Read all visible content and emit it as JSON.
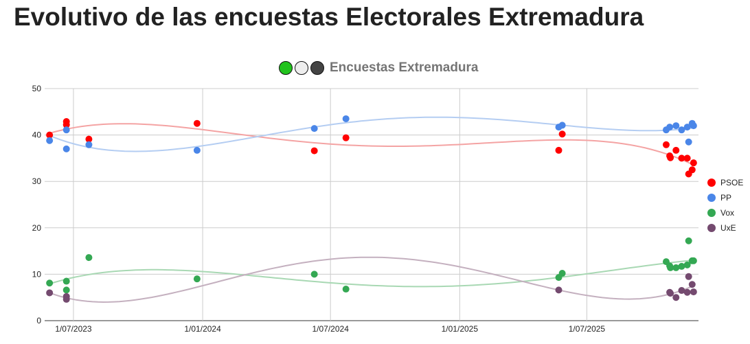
{
  "page_title": "Evolutivo de las encuestas Electorales Extremadura",
  "header_icons": [
    {
      "name": "green-circle-icon",
      "color": "#22c31e"
    },
    {
      "name": "white-circle-icon",
      "color": "#eeeeee"
    },
    {
      "name": "dark-circle-icon",
      "color": "#444444"
    }
  ],
  "chart_data": {
    "type": "scatter",
    "title": "Encuestas Extremadura",
    "xlabel": "",
    "ylabel": "",
    "xlim": [
      "2023-05-21",
      "2025-12-07"
    ],
    "ylim": [
      0,
      50
    ],
    "y_ticks": [
      "0",
      "10",
      "20",
      "30",
      "40",
      "50"
    ],
    "x_ticks": [
      {
        "date": "2023-07-01",
        "label": "1/07/2023"
      },
      {
        "date": "2024-01-01",
        "label": "1/01/2024"
      },
      {
        "date": "2024-07-01",
        "label": "1/07/2024"
      },
      {
        "date": "2025-01-01",
        "label": "1/01/2025"
      },
      {
        "date": "2025-07-01",
        "label": "1/07/2025"
      }
    ],
    "grid": true,
    "legend_position": "right",
    "trendline": "polynomial",
    "series": [
      {
        "name": "PSOE",
        "color": "#ff0000",
        "trend_color": "#f4a3a3"
      },
      {
        "name": "PP",
        "color": "#4a86e8",
        "trend_color": "#b4cdf2"
      },
      {
        "name": "Vox",
        "color": "#34a853",
        "trend_color": "#a8d8b3"
      },
      {
        "name": "UxE",
        "color": "#744a6f",
        "trend_color": "#c4b0bf"
      }
    ],
    "polls": [
      {
        "date": "2023-05-28",
        "PSOE": 40.0,
        "PP": 38.8,
        "Vox": 8.1,
        "UxE": 6.0
      },
      {
        "date": "2023-06-21",
        "PSOE": 42.9,
        "PP": 41.1,
        "Vox": 8.5,
        "UxE": 5.2
      },
      {
        "date": "2023-06-21",
        "PSOE": 42.2,
        "PP": 37.0,
        "Vox": 6.6,
        "UxE": 4.6
      },
      {
        "date": "2023-07-23",
        "PSOE": 39.1,
        "PP": 37.9,
        "Vox": 13.6
      },
      {
        "date": "2023-12-24",
        "PSOE": 42.5,
        "PP": 36.7,
        "Vox": 9.0
      },
      {
        "date": "2024-06-08",
        "PSOE": 36.6,
        "PP": 41.4,
        "Vox": 10.0
      },
      {
        "date": "2024-07-23",
        "PSOE": 39.4,
        "PP": 43.5,
        "Vox": 6.8
      },
      {
        "date": "2025-05-22",
        "PSOE": 36.7,
        "PP": 41.7,
        "Vox": 9.3,
        "UxE": 6.6
      },
      {
        "date": "2025-05-27",
        "PSOE": 40.2,
        "PP": 42.1,
        "Vox": 10.2
      },
      {
        "date": "2025-10-22",
        "PSOE": 37.9,
        "PP": 41.1,
        "Vox": 12.7
      },
      {
        "date": "2025-10-27",
        "PSOE": 35.5,
        "PP": 41.7,
        "Vox": 11.8,
        "UxE": 6.1
      },
      {
        "date": "2025-10-28",
        "PSOE": 35.1,
        "Vox": 11.4,
        "UxE": 5.9
      },
      {
        "date": "2025-11-05",
        "PSOE": 36.7,
        "PP": 42.0,
        "Vox": 11.4,
        "UxE": 5.0
      },
      {
        "date": "2025-11-13",
        "PSOE": 35.0,
        "PP": 41.1,
        "Vox": 11.7,
        "UxE": 6.5
      },
      {
        "date": "2025-11-21",
        "PSOE": 35.0,
        "PP": 41.7,
        "Vox": 12.0,
        "UxE": 6.1
      },
      {
        "date": "2025-11-23",
        "PSOE": 31.6,
        "PP": 38.5,
        "Vox": 17.2,
        "UxE": 9.5
      },
      {
        "date": "2025-11-28",
        "PSOE": 32.5,
        "PP": 42.5,
        "Vox": 12.9,
        "UxE": 7.8
      },
      {
        "date": "2025-11-30",
        "PSOE": 34.0,
        "PP": 42.0,
        "Vox": 12.9,
        "UxE": 6.2
      }
    ]
  }
}
